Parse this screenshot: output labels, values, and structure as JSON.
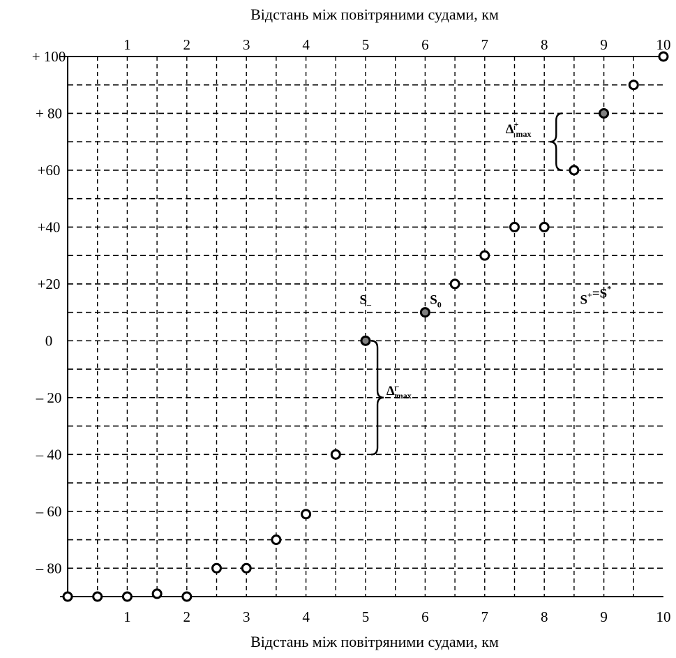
{
  "chart_data": {
    "type": "scatter",
    "title": "",
    "xlabel_top": "Відстань між повітряними судами, км",
    "xlabel_bottom": "Відстань між повітряними судами, км",
    "ylabel": "",
    "xlim": [
      0,
      10
    ],
    "ylim": [
      -90,
      100
    ],
    "grid": true,
    "x_ticks": [
      "1",
      "2",
      "3",
      "4",
      "5",
      "6",
      "7",
      "8",
      "9",
      "10"
    ],
    "y_ticks": [
      {
        "value": 100,
        "label": "+ 100"
      },
      {
        "value": 80,
        "label": "+ 80"
      },
      {
        "value": 60,
        "label": "+60"
      },
      {
        "value": 40,
        "label": "+40"
      },
      {
        "value": 20,
        "label": "+20"
      },
      {
        "value": 0,
        "label": "0"
      },
      {
        "value": -20,
        "label": "– 20"
      },
      {
        "value": -40,
        "label": "– 40"
      },
      {
        "value": -60,
        "label": "– 60"
      },
      {
        "value": -80,
        "label": "– 80"
      }
    ],
    "points": [
      {
        "x": 0,
        "y": -90,
        "filled": false
      },
      {
        "x": 0.5,
        "y": -90,
        "filled": false
      },
      {
        "x": 1,
        "y": -90,
        "filled": false
      },
      {
        "x": 1.5,
        "y": -89,
        "filled": false
      },
      {
        "x": 2,
        "y": -90,
        "filled": false
      },
      {
        "x": 2.5,
        "y": -80,
        "filled": false
      },
      {
        "x": 3,
        "y": -80,
        "filled": false
      },
      {
        "x": 3.5,
        "y": -70,
        "filled": false
      },
      {
        "x": 4,
        "y": -61,
        "filled": false
      },
      {
        "x": 4.5,
        "y": -40,
        "filled": false
      },
      {
        "x": 5,
        "y": 0,
        "filled": true
      },
      {
        "x": 6,
        "y": 10,
        "filled": true
      },
      {
        "x": 6.5,
        "y": 20,
        "filled": false
      },
      {
        "x": 7,
        "y": 30,
        "filled": false
      },
      {
        "x": 7.5,
        "y": 40,
        "filled": false
      },
      {
        "x": 8,
        "y": 40,
        "filled": false
      },
      {
        "x": 8.5,
        "y": 60,
        "filled": false
      },
      {
        "x": 9,
        "y": 80,
        "filled": true
      },
      {
        "x": 9.5,
        "y": 90,
        "filled": false
      },
      {
        "x": 10,
        "y": 100,
        "filled": false
      }
    ],
    "annotations": [
      {
        "id": "s-minus",
        "base": "S",
        "sub": "–",
        "sup": "",
        "x": 4.9,
        "y": 13
      },
      {
        "id": "s-zero",
        "base": "S",
        "sub": "0",
        "sup": "",
        "x": 6.08,
        "y": 13
      },
      {
        "id": "s-plus",
        "base": "S",
        "sup": "+",
        "rest": "=S",
        "rest_sup": "*",
        "x": 8.6,
        "y": 13
      },
      {
        "id": "delta-plus-max",
        "base": "Δ",
        "sup": "+",
        "sub": "max",
        "x": 7.35,
        "y": 73
      },
      {
        "id": "delta-minus-max",
        "base": "Δ",
        "sup": "–",
        "sub": "max",
        "x": 5.35,
        "y": -19
      }
    ],
    "braces": [
      {
        "id": "brace-delta-plus",
        "x": 8.2,
        "y_from": 80,
        "y_to": 60,
        "opens": "left"
      },
      {
        "id": "brace-delta-minus",
        "x": 5.2,
        "y_from": 0,
        "y_to": -40,
        "opens": "right"
      }
    ]
  }
}
